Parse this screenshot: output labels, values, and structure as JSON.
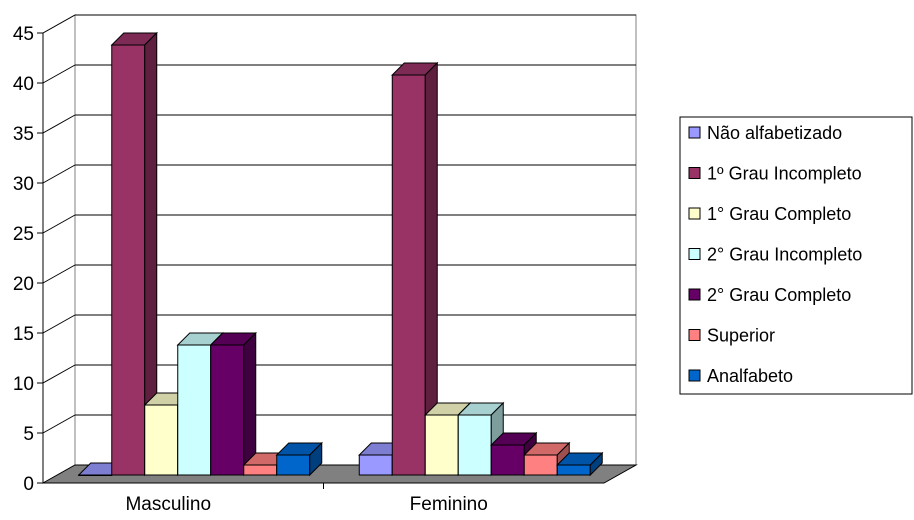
{
  "chart_data": {
    "type": "bar",
    "categories": [
      "Masculino",
      "Feminino"
    ],
    "series": [
      {
        "name": "Não alfabetizado",
        "values": [
          0,
          2
        ],
        "color": "#9999FF"
      },
      {
        "name": "1º Grau Incompleto",
        "values": [
          43,
          40
        ],
        "color": "#993366"
      },
      {
        "name": "1° Grau Completo",
        "values": [
          7,
          6
        ],
        "color": "#FFFFCC"
      },
      {
        "name": "2° Grau Incompleto",
        "values": [
          13,
          6
        ],
        "color": "#CCFFFF"
      },
      {
        "name": "2° Grau Completo",
        "values": [
          13,
          3
        ],
        "color": "#660066"
      },
      {
        "name": "Superior",
        "values": [
          1,
          2
        ],
        "color": "#FF8080"
      },
      {
        "name": "Analfabeto",
        "values": [
          2,
          1
        ],
        "color": "#0066CC"
      }
    ],
    "ylim": [
      0,
      45
    ],
    "yticks": [
      0,
      5,
      10,
      15,
      20,
      25,
      30,
      35,
      40,
      45
    ],
    "grid": true,
    "legend": "right",
    "three_d": true
  }
}
